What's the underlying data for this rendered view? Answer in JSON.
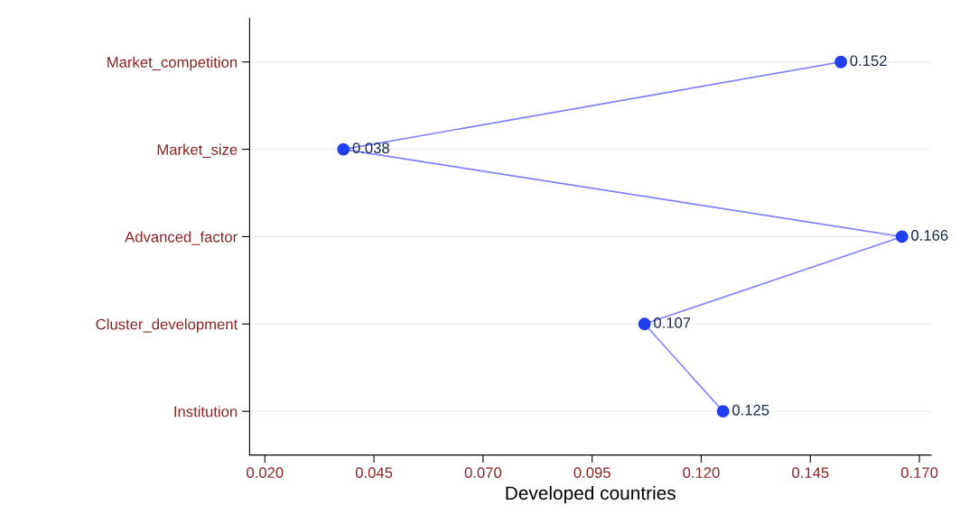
{
  "chart_data": {
    "type": "line",
    "orientation": "horizontal",
    "xlabel": "Developed countries",
    "categories": [
      "Market_competition",
      "Market_size",
      "Advanced_factor",
      "Cluster_development",
      "Institution"
    ],
    "series": [
      {
        "color": "#1f3ff0",
        "values": [
          0.152,
          0.038,
          0.166,
          0.107,
          0.125
        ]
      }
    ],
    "data_labels": true,
    "marker": "circle",
    "grid": "y",
    "xlim": [
      0.0165,
      0.1727
    ],
    "xticks": [
      {
        "value": 0.02,
        "label": "0.020"
      },
      {
        "value": 0.045,
        "label": "0.045"
      },
      {
        "value": 0.07,
        "label": "0.070"
      },
      {
        "value": 0.095,
        "label": "0.095"
      },
      {
        "value": 0.12,
        "label": "0.120"
      },
      {
        "value": 0.145,
        "label": "0.145"
      },
      {
        "value": 0.17,
        "label": "0.170"
      }
    ]
  }
}
